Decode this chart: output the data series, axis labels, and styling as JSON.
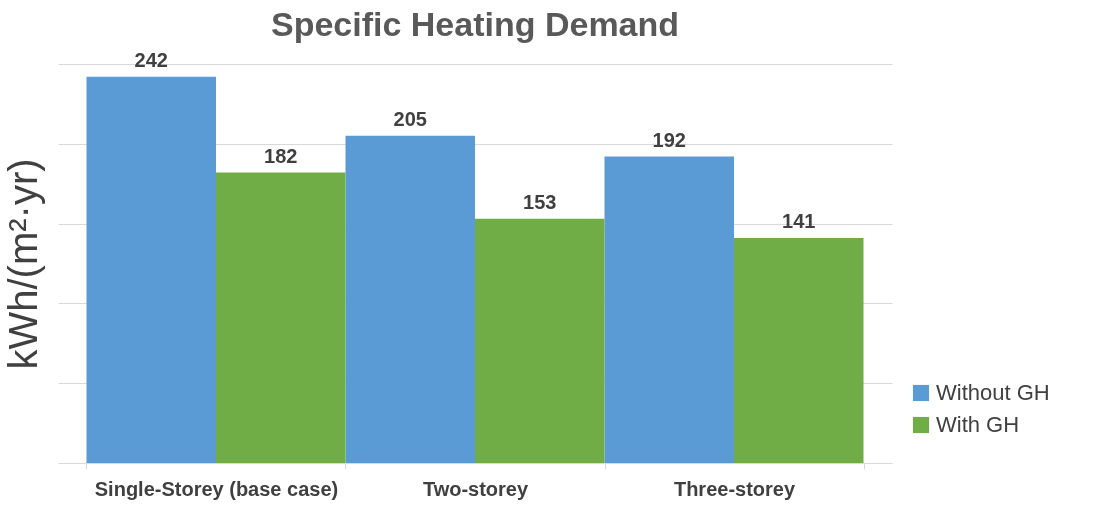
{
  "chart_data": {
    "type": "bar",
    "title": "Specific Heating Demand",
    "ylabel": "kWh/(m²·yr)",
    "categories": [
      "Single-Storey (base case)",
      "Two-storey",
      "Three-storey"
    ],
    "series": [
      {
        "name": "Without GH",
        "color": "#5b9bd5",
        "values": [
          242,
          205,
          192
        ]
      },
      {
        "name": "With GH",
        "color": "#70ad47",
        "values": [
          182,
          153,
          141
        ]
      }
    ],
    "ylim": [
      0,
      250
    ],
    "yticks": [
      {
        "value": 0,
        "label": null
      },
      {
        "value": 50,
        "label": null
      },
      {
        "value": 100,
        "label": null
      },
      {
        "value": 150,
        "label": null
      },
      {
        "value": 200,
        "label": null
      },
      {
        "value": 250,
        "label": null
      }
    ],
    "tick_labels": "x",
    "grid": "y",
    "data_labels": true,
    "legend": "bottom right"
  }
}
